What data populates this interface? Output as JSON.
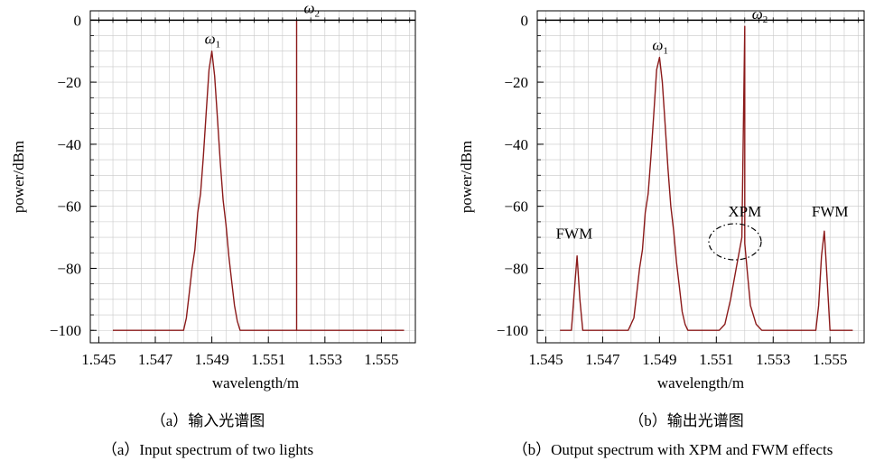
{
  "colors": {
    "trace": "#8b1a1a",
    "grid": "#c8c8c8",
    "frame": "#000000",
    "background": "#ffffff"
  },
  "chart_data": [
    {
      "type": "line",
      "xlabel": "wavelength/m",
      "ylabel": "power/dBm",
      "xlim": [
        1.5447,
        1.5562
      ],
      "ylim": [
        -104,
        3
      ],
      "xticks": [
        "1.545",
        "1.547",
        "1.549",
        "1.551",
        "1.553",
        "1.555"
      ],
      "yticks": [
        "0",
        "−20",
        "−40",
        "−60",
        "−80",
        "−100"
      ],
      "grid": true,
      "peaks": [
        {
          "label": "ω",
          "sub": "1",
          "x": 1.549,
          "y": -10
        },
        {
          "label": "ω",
          "sub": "2",
          "x": 1.552,
          "y": 0
        }
      ],
      "annotations": [],
      "series": [
        {
          "x": [
            1.5455,
            1.548,
            1.5481,
            1.5482,
            1.5483,
            1.5484,
            1.5485,
            1.5486,
            1.5487,
            1.5488,
            1.5489,
            1.549,
            1.5491,
            1.5492,
            1.5493,
            1.5494,
            1.5495,
            1.5496,
            1.5497,
            1.5498,
            1.5499,
            1.55,
            1.5519,
            1.552,
            1.552,
            1.552,
            1.5521,
            1.5558
          ],
          "y": [
            -100,
            -100,
            -96,
            -88,
            -80,
            -74,
            -62,
            -56,
            -44,
            -30,
            -16,
            -10,
            -18,
            -32,
            -46,
            -58,
            -66,
            -76,
            -84,
            -92,
            -97,
            -100,
            -100,
            -100,
            0,
            -100,
            -100,
            -100
          ]
        }
      ],
      "caption_cn": "（a）输入光谱图",
      "caption_en": "（a）Input spectrum of two lights"
    },
    {
      "type": "line",
      "xlabel": "wavelength/m",
      "ylabel": "power/dBm",
      "xlim": [
        1.5447,
        1.5562
      ],
      "ylim": [
        -104,
        3
      ],
      "xticks": [
        "1.545",
        "1.547",
        "1.549",
        "1.551",
        "1.553",
        "1.555"
      ],
      "yticks": [
        "0",
        "−20",
        "−40",
        "−60",
        "−80",
        "−100"
      ],
      "grid": true,
      "peaks": [
        {
          "label": "ω",
          "sub": "1",
          "x": 1.549,
          "y": -12
        },
        {
          "label": "ω",
          "sub": "2",
          "x": 1.552,
          "y": -2
        }
      ],
      "annotations": [
        {
          "text": "FWM",
          "x": 1.546,
          "y": -75
        },
        {
          "text": "XPM",
          "x": 1.552,
          "y": -68
        },
        {
          "text": "FWM",
          "x": 1.555,
          "y": -68
        }
      ],
      "series": [
        {
          "x": [
            1.5455,
            1.5459,
            1.546,
            1.5461,
            1.5462,
            1.5463,
            1.5479,
            1.5481,
            1.5482,
            1.5483,
            1.5484,
            1.5485,
            1.5486,
            1.5487,
            1.5488,
            1.5489,
            1.549,
            1.5491,
            1.5492,
            1.5493,
            1.5494,
            1.5495,
            1.5496,
            1.5497,
            1.5498,
            1.5499,
            1.55,
            1.5511,
            1.5513,
            1.5515,
            1.5517,
            1.5519,
            1.552,
            1.552,
            1.552,
            1.5521,
            1.5522,
            1.5524,
            1.5526,
            1.5528,
            1.5545,
            1.5546,
            1.5547,
            1.5548,
            1.5549,
            1.555,
            1.5558
          ],
          "y": [
            -100,
            -100,
            -88,
            -76,
            -90,
            -100,
            -100,
            -96,
            -88,
            -80,
            -74,
            -62,
            -56,
            -44,
            -30,
            -16,
            -12,
            -20,
            -34,
            -48,
            -60,
            -68,
            -78,
            -86,
            -94,
            -98,
            -100,
            -100,
            -98,
            -90,
            -80,
            -70,
            -2,
            -70,
            -72,
            -82,
            -92,
            -98,
            -100,
            -100,
            -100,
            -92,
            -76,
            -68,
            -84,
            -100,
            -100
          ]
        }
      ],
      "caption_cn": "（b）输出光谱图",
      "caption_en": "（b）Output spectrum with XPM and FWM effects"
    }
  ]
}
